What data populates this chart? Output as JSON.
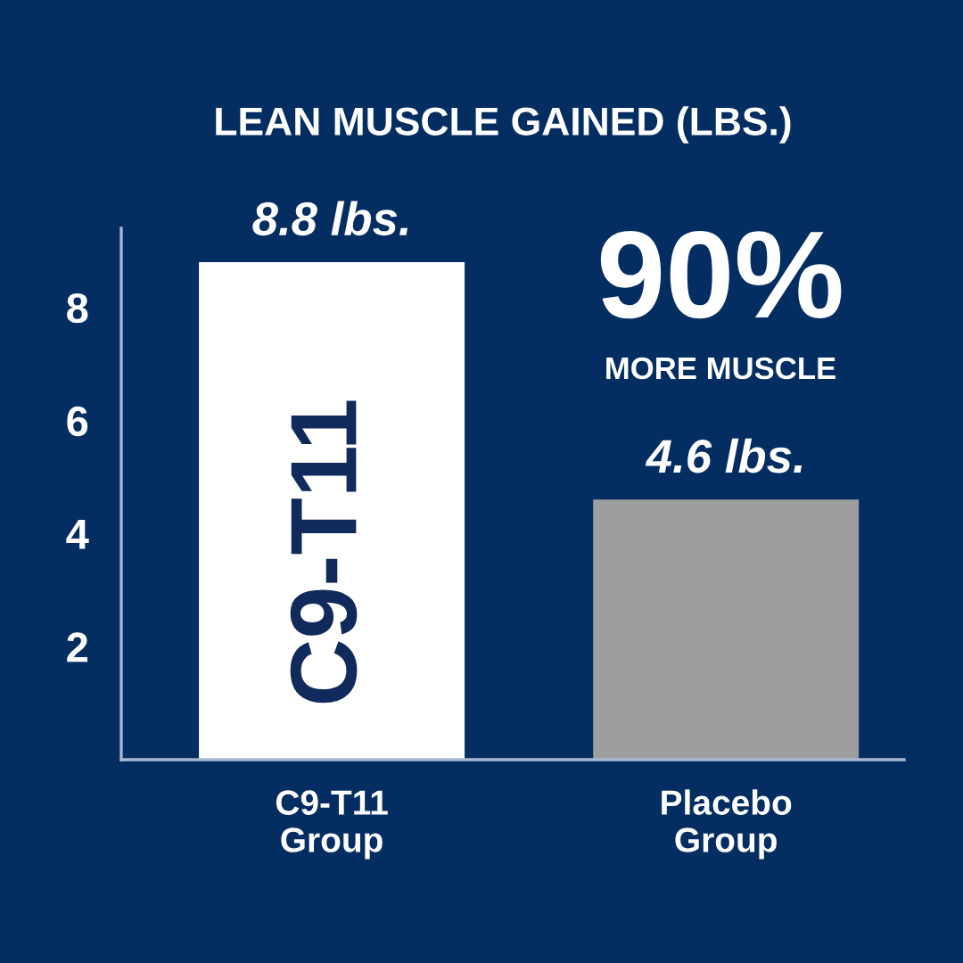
{
  "chart_data": {
    "type": "bar",
    "title": "LEAN MUSCLE GAINED (LBS.)",
    "categories": [
      "C9-T11\nGroup",
      "Placebo\nGroup"
    ],
    "values": [
      8.8,
      4.6
    ],
    "colors": [
      "#ffffff",
      "#9e9e9e"
    ],
    "value_labels": [
      "8.8 lbs.",
      "4.6 lbs."
    ],
    "ylim": [
      0,
      9.4
    ],
    "yticks": [
      2,
      4,
      6,
      8
    ],
    "annotations": [
      "90%",
      "MORE MUSCLE",
      "C9-T11"
    ]
  }
}
